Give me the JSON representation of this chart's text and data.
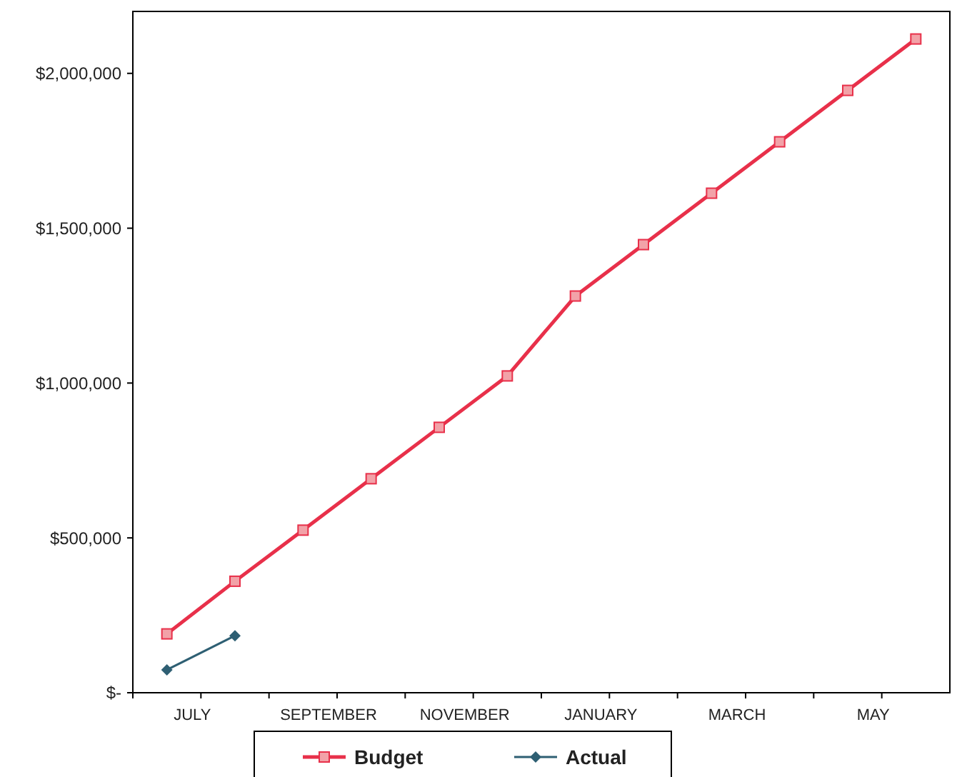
{
  "chart_data": {
    "type": "line",
    "categories": [
      "JULY",
      null,
      "SEPTEMBER",
      null,
      "NOVEMBER",
      null,
      "JANUARY",
      null,
      "MARCH",
      null,
      "MAY",
      null
    ],
    "series": [
      {
        "name": "Budget",
        "color": "#e8304a",
        "marker": "square",
        "values": [
          190000,
          360000,
          525000,
          691000,
          857000,
          1023000,
          1281000,
          1447000,
          1613000,
          1779000,
          1945000,
          2111000
        ]
      },
      {
        "name": "Actual",
        "color": "#2e5f73",
        "marker": "diamond",
        "values": [
          74000,
          184000,
          null,
          null,
          null,
          null,
          null,
          null,
          null,
          null,
          null,
          null
        ]
      }
    ],
    "ylim": [
      0,
      2200000
    ],
    "yticks": [
      {
        "value": 0,
        "label": "$-"
      },
      {
        "value": 500000,
        "label": "$500,000"
      },
      {
        "value": 1000000,
        "label": "$1,000,000"
      },
      {
        "value": 1500000,
        "label": "$1,500,000"
      },
      {
        "value": 2000000,
        "label": "$2,000,000"
      }
    ],
    "grid": false,
    "legend": "bottom",
    "line_style": "solid"
  }
}
